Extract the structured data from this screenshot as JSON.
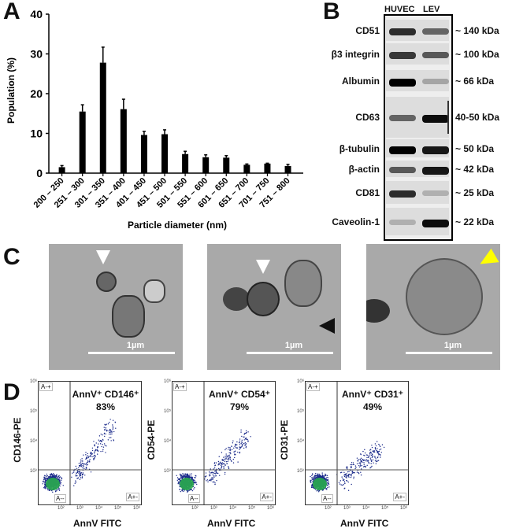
{
  "panel_letters": {
    "a": "A",
    "b": "B",
    "c": "C",
    "d": "D"
  },
  "chart_data": {
    "type": "bar",
    "xlabel": "Particle diameter (nm)",
    "ylabel": "Population (%)",
    "ylim": [
      0,
      40
    ],
    "yticks": [
      0,
      10,
      20,
      30,
      40
    ],
    "categories": [
      "200 – 250",
      "251 – 300",
      "301 – 350",
      "351 – 400",
      "401 – 450",
      "451 – 500",
      "501 – 550",
      "551 – 600",
      "601 – 650",
      "651 – 700",
      "701 – 750",
      "751 – 800"
    ],
    "values": [
      1.5,
      15.5,
      27.8,
      16.1,
      9.6,
      9.8,
      4.8,
      4.0,
      3.9,
      2.1,
      2.4,
      1.8
    ],
    "error_upper": [
      1.9,
      17.2,
      31.7,
      18.6,
      10.5,
      10.9,
      5.5,
      4.6,
      4.4,
      2.3,
      2.5,
      2.2
    ],
    "bar_color": "#000000",
    "grid": false
  },
  "western_blot": {
    "lanes": [
      "HUVEC",
      "LEV"
    ],
    "rows": [
      {
        "protein": "CD51",
        "size": "~ 140 kDa"
      },
      {
        "protein": "β3 integrin",
        "size": "~ 100 kDa"
      },
      {
        "protein": "Albumin",
        "size": "~ 66 kDa"
      },
      {
        "protein": "CD63",
        "size": "40-50 kDa"
      },
      {
        "protein": "β-tubulin",
        "size": "~ 50 kDa"
      },
      {
        "protein": "β-actin",
        "size": "~ 42 kDa"
      },
      {
        "protein": "CD81",
        "size": "~ 25 kDa"
      },
      {
        "protein": "Caveolin-1",
        "size": "~ 22 kDa"
      }
    ]
  },
  "em_images": [
    {
      "scale": "1µm",
      "arrow_color": "#ffffff"
    },
    {
      "scale": "1µm",
      "arrow_color": "#ffffff",
      "arrow2_color": "#111111"
    },
    {
      "scale": "1µm",
      "arrow_color": "#ffff00"
    }
  ],
  "flow_plots": [
    {
      "ylabel": "CD146-PE",
      "xlabel": "AnnV FITC",
      "title": "AnnV⁺ CD146⁺",
      "percent": "83%"
    },
    {
      "ylabel": "CD54-PE",
      "xlabel": "AnnV FITC",
      "title": "AnnV⁺ CD54⁺",
      "percent": "79%"
    },
    {
      "ylabel": "CD31-PE",
      "xlabel": "AnnV FITC",
      "title": "AnnV⁺ CD31⁺",
      "percent": "49%"
    }
  ],
  "flow_quadrants": {
    "ul": "A-+",
    "ll": "A--",
    "lr": "A+-"
  },
  "flow_ticks": [
    "10²",
    "10³",
    "10⁴",
    "10⁵",
    "10⁶"
  ]
}
